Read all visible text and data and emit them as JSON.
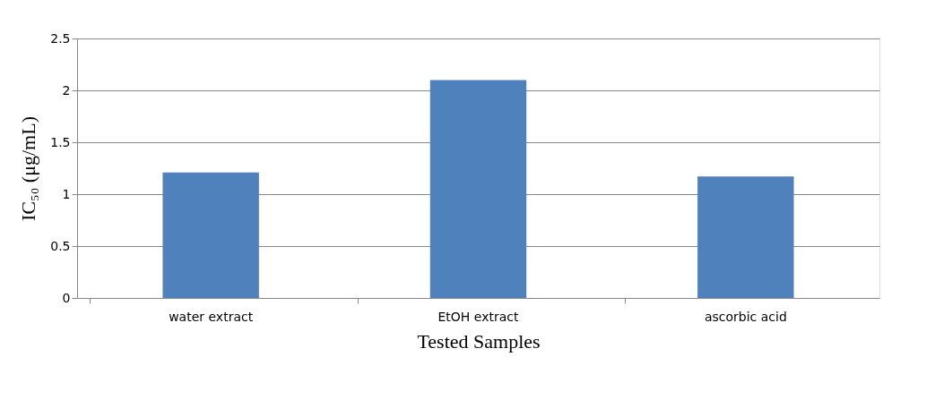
{
  "chart_data": {
    "type": "bar",
    "xlabel": "Tested Samples",
    "ylabel": "IC₅₀  (μg/mL)",
    "categories": [
      "water extract",
      "EtOH extract",
      "ascorbic acid"
    ],
    "values": [
      1.21,
      2.1,
      1.17
    ],
    "color": "#4f81bd",
    "ylim": [
      0,
      2.5
    ],
    "yticks": [
      0,
      0.5,
      1,
      1.5,
      2,
      2.5
    ],
    "grid": "y"
  }
}
